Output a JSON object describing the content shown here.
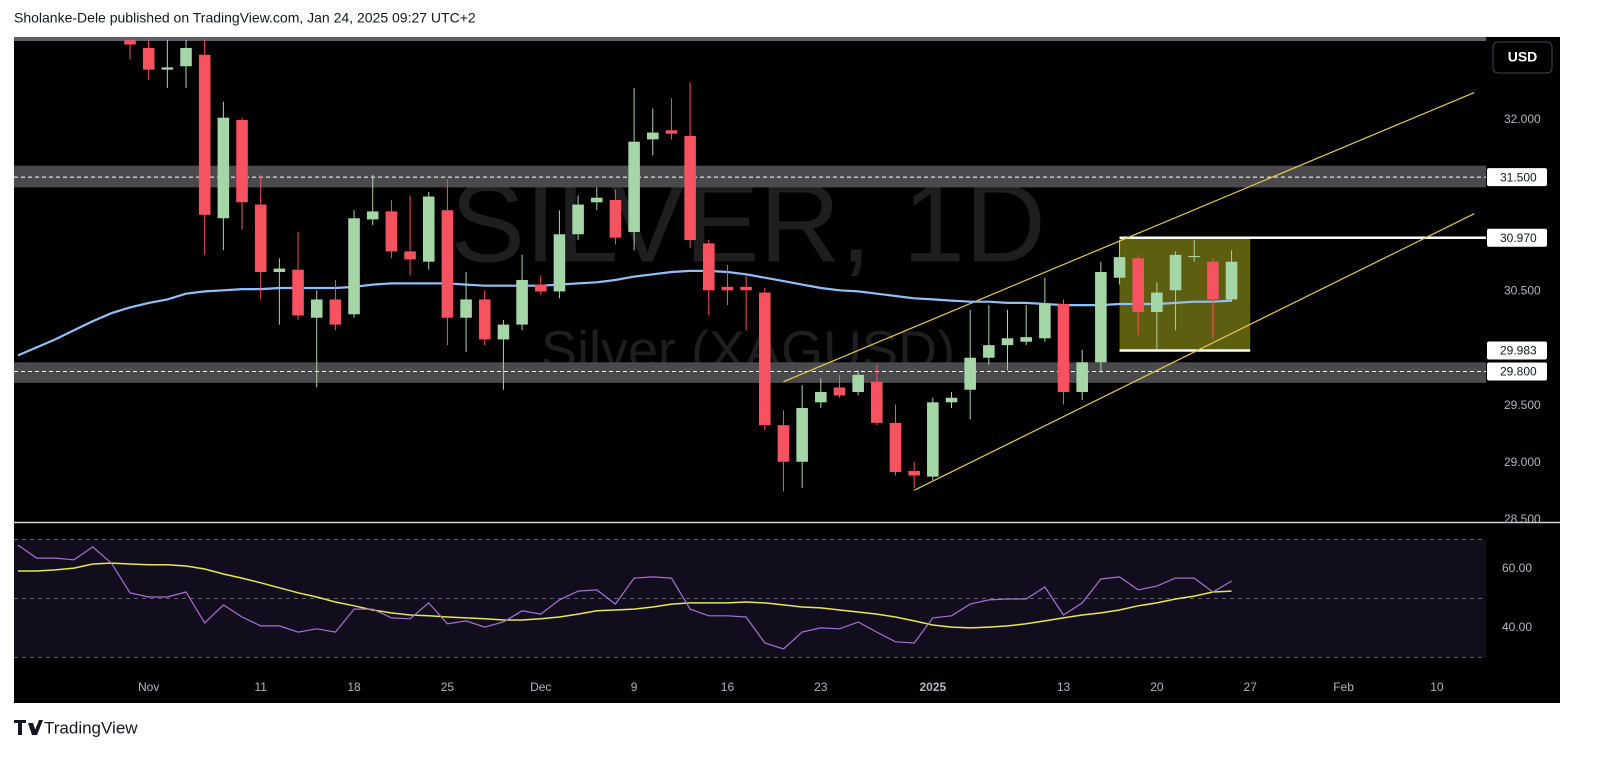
{
  "header": "Sholanke-Dele published on TradingView.com, Jan 24, 2025 09:27 UTC+2",
  "footer": "TradingView",
  "chart_data": {
    "type": "candlestick",
    "watermark": "SILVER, 1D",
    "watermark_subtitle": "Silver (XAGUSD)",
    "currency": "USD",
    "categories": [
      null,
      null,
      null,
      null,
      null,
      null,
      null,
      "Nov",
      null,
      null,
      null,
      null,
      null,
      "11",
      null,
      null,
      null,
      null,
      "18",
      null,
      null,
      null,
      null,
      "25",
      null,
      null,
      null,
      null,
      "Dec",
      null,
      null,
      null,
      null,
      "9",
      null,
      null,
      null,
      null,
      "16",
      null,
      null,
      null,
      null,
      "23",
      null,
      null,
      null,
      null,
      null,
      "2025",
      null,
      null,
      null,
      null,
      null,
      null,
      "13",
      null,
      null,
      null,
      null,
      "20",
      null,
      null,
      null,
      null,
      "27",
      null,
      null,
      null,
      null,
      "Feb",
      null,
      null,
      null,
      null,
      "10",
      null,
      null
    ],
    "open": [
      null,
      null,
      null,
      null,
      null,
      null,
      32.75,
      32.63,
      32.44,
      32.47,
      32.57,
      31.14,
      32.0,
      31.26,
      30.67,
      30.69,
      30.27,
      30.43,
      30.3,
      31.13,
      31.2,
      30.85,
      30.76,
      31.21,
      30.27,
      30.43,
      30.08,
      30.21,
      30.56,
      30.5,
      31.0,
      31.28,
      31.3,
      31.02,
      31.83,
      31.91,
      31.86,
      30.92,
      30.54,
      30.54,
      30.49,
      29.33,
      29.01,
      29.53,
      29.66,
      29.62,
      29.71,
      29.35,
      28.93,
      28.88,
      29.53,
      29.64,
      29.92,
      30.03,
      30.06,
      30.09,
      30.39,
      29.62,
      29.88,
      30.62,
      30.79,
      30.32,
      30.51,
      30.8,
      30.76,
      30.43,
      null,
      null,
      null,
      null,
      null,
      null,
      null,
      null,
      null,
      null,
      null,
      null,
      null
    ],
    "high": [
      null,
      null,
      null,
      null,
      null,
      null,
      32.9,
      32.72,
      32.7,
      32.72,
      32.72,
      32.16,
      32.02,
      31.52,
      30.79,
      31.02,
      30.51,
      30.6,
      31.21,
      31.52,
      31.3,
      31.34,
      31.37,
      31.48,
      30.67,
      30.51,
      30.25,
      30.82,
      30.64,
      31.21,
      31.34,
      31.41,
      31.39,
      32.28,
      32.1,
      32.19,
      32.33,
      30.95,
      30.73,
      30.64,
      30.53,
      29.46,
      29.68,
      29.74,
      29.77,
      29.81,
      29.86,
      29.51,
      29.01,
      29.57,
      29.62,
      30.34,
      30.38,
      30.34,
      30.38,
      30.62,
      30.43,
      29.99,
      30.76,
      30.95,
      30.82,
      30.58,
      30.85,
      30.95,
      30.79,
      30.86,
      null,
      null,
      null,
      null,
      null,
      null,
      null,
      null,
      null,
      null,
      null,
      null,
      null
    ],
    "low": [
      null,
      null,
      null,
      null,
      null,
      null,
      32.53,
      32.35,
      32.28,
      32.28,
      30.82,
      30.86,
      31.04,
      30.43,
      30.21,
      30.25,
      29.66,
      30.16,
      30.27,
      31.08,
      30.79,
      30.64,
      30.69,
      30.03,
      29.97,
      30.03,
      29.64,
      30.16,
      30.47,
      30.44,
      30.95,
      31.21,
      30.91,
      30.86,
      31.69,
      31.83,
      30.88,
      30.29,
      30.38,
      30.16,
      29.29,
      28.75,
      28.78,
      29.48,
      29.57,
      29.59,
      29.33,
      28.89,
      28.78,
      28.85,
      29.48,
      29.38,
      29.86,
      29.81,
      30.03,
      30.06,
      29.51,
      29.55,
      29.79,
      30.56,
      30.12,
      29.99,
      30.16,
      30.76,
      30.09,
      30.41,
      null,
      null,
      null,
      null,
      null,
      null,
      null,
      null,
      null,
      null,
      null,
      null,
      null
    ],
    "close": [
      null,
      null,
      null,
      null,
      null,
      null,
      32.66,
      32.44,
      32.46,
      32.63,
      31.17,
      32.02,
      31.28,
      30.67,
      30.7,
      30.29,
      30.43,
      30.21,
      31.14,
      31.2,
      30.85,
      30.78,
      31.33,
      30.27,
      30.43,
      30.08,
      30.21,
      30.6,
      30.5,
      31.0,
      31.26,
      31.32,
      30.97,
      31.81,
      31.89,
      31.88,
      30.95,
      30.51,
      30.51,
      30.51,
      29.33,
      29.01,
      29.48,
      29.62,
      29.59,
      29.77,
      29.35,
      28.92,
      28.89,
      29.53,
      29.57,
      29.92,
      30.03,
      30.09,
      30.1,
      30.39,
      29.62,
      29.88,
      30.67,
      30.8,
      30.32,
      30.49,
      30.82,
      30.81,
      30.43,
      30.76,
      null,
      null,
      null,
      null,
      null,
      null,
      null,
      null,
      null,
      null,
      null,
      null,
      null
    ],
    "up_color": "#a5d6a7",
    "down_color": "#f7525f",
    "moving_average": {
      "color": "#90bff9",
      "values": [
        29.94,
        30.01,
        30.08,
        30.16,
        30.24,
        30.31,
        30.36,
        30.4,
        30.43,
        30.48,
        30.5,
        30.51,
        30.52,
        30.52,
        30.53,
        30.53,
        30.53,
        30.53,
        30.54,
        30.56,
        30.57,
        30.57,
        30.57,
        30.57,
        30.56,
        30.55,
        30.55,
        30.55,
        30.55,
        30.56,
        30.57,
        30.58,
        30.6,
        30.63,
        30.65,
        30.67,
        30.68,
        30.68,
        30.67,
        30.65,
        30.62,
        30.59,
        30.56,
        30.53,
        30.51,
        30.5,
        30.48,
        30.46,
        30.44,
        30.43,
        30.42,
        30.41,
        30.41,
        30.4,
        30.4,
        30.39,
        30.38,
        30.38,
        30.38,
        30.39,
        30.39,
        30.39,
        30.4,
        30.41,
        30.41,
        30.42,
        null,
        null,
        null,
        null,
        null,
        null,
        null,
        null,
        null,
        null,
        null,
        null,
        null
      ]
    },
    "ylim": [
      28.483,
      32.717
    ],
    "yticks": [
      {
        "value": 28.5,
        "label": "28.500"
      },
      {
        "value": 29.0,
        "label": "29.000"
      },
      {
        "value": 29.5,
        "label": "29.500"
      },
      {
        "value": 30.5,
        "label": "30.500"
      },
      {
        "value": 32.0,
        "label": "32.000"
      }
    ],
    "levels": [
      {
        "value": 31.5,
        "label": "31.500",
        "zone": [
          31.41,
          31.6
        ]
      },
      {
        "value": 30.97,
        "label": "30.970",
        "from": 59
      },
      {
        "value": 29.983,
        "label": "29.983",
        "from": 59,
        "to": 66
      },
      {
        "value": 29.8,
        "label": "29.800",
        "zone": [
          29.7,
          29.88
        ]
      }
    ],
    "box": {
      "from": 59,
      "to": 66,
      "range": [
        29.983,
        30.97
      ],
      "color": "#6e6e14"
    },
    "channel": {
      "color": "#e6c94a",
      "lines": [
        {
          "x": [
            41,
            78
          ],
          "y": [
            29.71,
            32.24
          ]
        },
        {
          "x": [
            48,
            78
          ],
          "y": [
            28.76,
            31.18
          ]
        }
      ]
    },
    "rsi": {
      "ylim": [
        23.7,
        75.25
      ],
      "yticks": [
        {
          "value": 40,
          "label": "40.00"
        },
        {
          "value": 60,
          "label": "60.00"
        }
      ],
      "levels": [
        30,
        50,
        70
      ],
      "color": "#a86fd6",
      "values": [
        68.1,
        63.7,
        63.7,
        63.1,
        67.5,
        62.0,
        51.9,
        50.5,
        50.5,
        52.2,
        41.7,
        47.8,
        43.7,
        40.7,
        40.7,
        38.6,
        39.7,
        38.6,
        46.4,
        46.4,
        43.4,
        43.1,
        48.5,
        41.4,
        42.4,
        40.3,
        42.0,
        45.8,
        44.7,
        49.5,
        52.5,
        52.9,
        48.1,
        56.9,
        57.3,
        56.9,
        46.4,
        44.1,
        44.1,
        43.7,
        34.9,
        32.9,
        38.6,
        40.0,
        39.7,
        42.0,
        38.6,
        35.3,
        34.9,
        43.4,
        44.1,
        48.1,
        49.5,
        49.8,
        49.8,
        53.9,
        44.4,
        48.5,
        56.6,
        57.3,
        52.9,
        54.2,
        56.9,
        56.9,
        52.2,
        55.9,
        null,
        null,
        null,
        null,
        null,
        null,
        null,
        null,
        null,
        null,
        null,
        null,
        null
      ],
      "ma_color": "#e8e84a",
      "ma_values": [
        59.3,
        59.3,
        59.7,
        60.3,
        61.7,
        62.0,
        61.7,
        61.4,
        61.4,
        61.0,
        60.0,
        58.3,
        56.9,
        55.3,
        53.6,
        51.9,
        50.5,
        48.8,
        47.5,
        46.1,
        45.1,
        44.4,
        44.1,
        43.7,
        43.4,
        43.1,
        42.7,
        42.7,
        43.1,
        43.7,
        44.7,
        45.8,
        46.1,
        46.4,
        47.1,
        48.1,
        48.5,
        48.5,
        48.5,
        48.8,
        48.5,
        47.8,
        47.1,
        46.8,
        46.1,
        45.4,
        44.7,
        43.7,
        42.4,
        41.0,
        40.3,
        40.0,
        40.3,
        40.7,
        41.4,
        42.4,
        43.4,
        44.4,
        45.1,
        46.1,
        47.5,
        48.5,
        49.8,
        50.8,
        52.2,
        52.5,
        null,
        null,
        null,
        null,
        null,
        null,
        null,
        null,
        null,
        null,
        null,
        null,
        null
      ]
    }
  }
}
